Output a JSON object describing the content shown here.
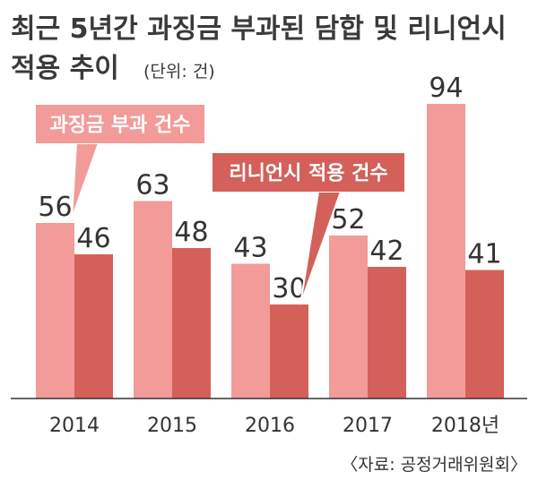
{
  "title_line1": "최근 5년간 과징금 부과된 담합 및 리니언시",
  "title_line2": "적용 추이",
  "unit": "(단위: 건)",
  "source": "〈자료: 공정거래위원회〉",
  "colors": {
    "series1": "#f29b98",
    "series2": "#d4605a",
    "callout1": "#f29b98",
    "callout2": "#d4605a",
    "axis": "#333333",
    "text": "#333333"
  },
  "chart_data": {
    "type": "bar",
    "categories": [
      "2014",
      "2015",
      "2016",
      "2017",
      "2018년"
    ],
    "series": [
      {
        "name": "과징금 부과 건수",
        "values": [
          56,
          63,
          43,
          52,
          94
        ]
      },
      {
        "name": "리니언시 적용 건수",
        "values": [
          46,
          48,
          30,
          42,
          41
        ]
      }
    ],
    "ylim": [
      0,
      100
    ],
    "grid": false
  }
}
